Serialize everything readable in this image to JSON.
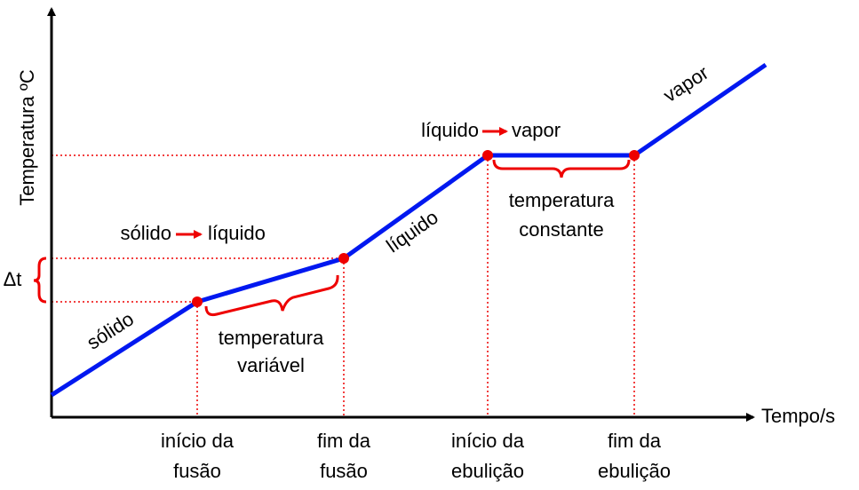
{
  "axes": {
    "y_label": "Temperatura ºC",
    "x_label": "Tempo/s"
  },
  "delta_label": "Δt",
  "x_labels": [
    {
      "lines": [
        "início da",
        "fusão"
      ]
    },
    {
      "lines": [
        "fim da",
        "fusão"
      ]
    },
    {
      "lines": [
        "início da",
        "ebulição"
      ]
    },
    {
      "lines": [
        "fim da",
        "ebulição"
      ]
    }
  ],
  "phase_labels": [
    "sólido",
    "líquido",
    "vapor"
  ],
  "transitions": [
    {
      "from": "sólido",
      "to": "líquido"
    },
    {
      "from": "líquido",
      "to": "vapor"
    }
  ],
  "notes": [
    {
      "lines": [
        "temperatura",
        "variável"
      ]
    },
    {
      "lines": [
        "temperatura",
        "constante"
      ]
    }
  ]
}
